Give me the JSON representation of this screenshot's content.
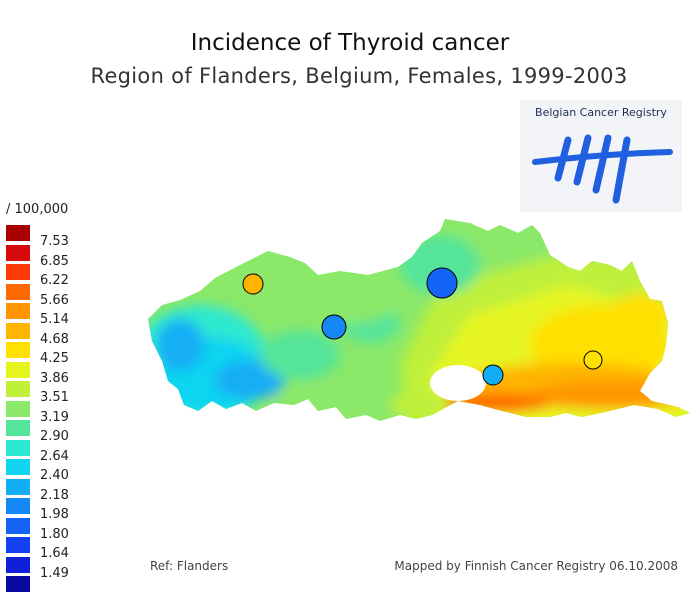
{
  "header": {
    "title": "Incidence of Thyroid cancer",
    "subtitle": "Region of Flanders, Belgium, Females, 1999-2003"
  },
  "logo": {
    "text": "Belgian Cancer Registry",
    "color": "#1f5fe0"
  },
  "legend": {
    "unit": "/ 100,000",
    "items": [
      {
        "label": "7.53",
        "color": "#a80000"
      },
      {
        "label": "6.85",
        "color": "#d60a0a"
      },
      {
        "label": "6.22",
        "color": "#ff3a0a"
      },
      {
        "label": "5.66",
        "color": "#ff6a00"
      },
      {
        "label": "5.14",
        "color": "#ff9600"
      },
      {
        "label": "4.68",
        "color": "#ffb400"
      },
      {
        "label": "4.25",
        "color": "#ffe000"
      },
      {
        "label": "3.86",
        "color": "#e6f520"
      },
      {
        "label": "3.51",
        "color": "#bff03a"
      },
      {
        "label": "3.19",
        "color": "#8be868"
      },
      {
        "label": "2.90",
        "color": "#55e59a"
      },
      {
        "label": "2.64",
        "color": "#2de8d0"
      },
      {
        "label": "2.40",
        "color": "#10d4f0"
      },
      {
        "label": "2.18",
        "color": "#12aef5"
      },
      {
        "label": "1.98",
        "color": "#1488f5"
      },
      {
        "label": "1.80",
        "color": "#1465f5"
      },
      {
        "label": "1.64",
        "color": "#1440f0"
      },
      {
        "label": "1.49",
        "color": "#1020d8"
      },
      {
        "label": "",
        "color": "#0a0aa0"
      }
    ]
  },
  "map": {
    "markers": [
      {
        "name": "marker-west",
        "color": "#ffb400"
      },
      {
        "name": "marker-central-west",
        "color": "#1488f5"
      },
      {
        "name": "marker-antwerp",
        "color": "#1465f5"
      },
      {
        "name": "marker-leuven",
        "color": "#12aef5"
      },
      {
        "name": "marker-east",
        "color": "#ffe000"
      }
    ]
  },
  "footer": {
    "ref": "Ref: Flanders",
    "credit": "Mapped by Finnish Cancer Registry 06.10.2008"
  }
}
